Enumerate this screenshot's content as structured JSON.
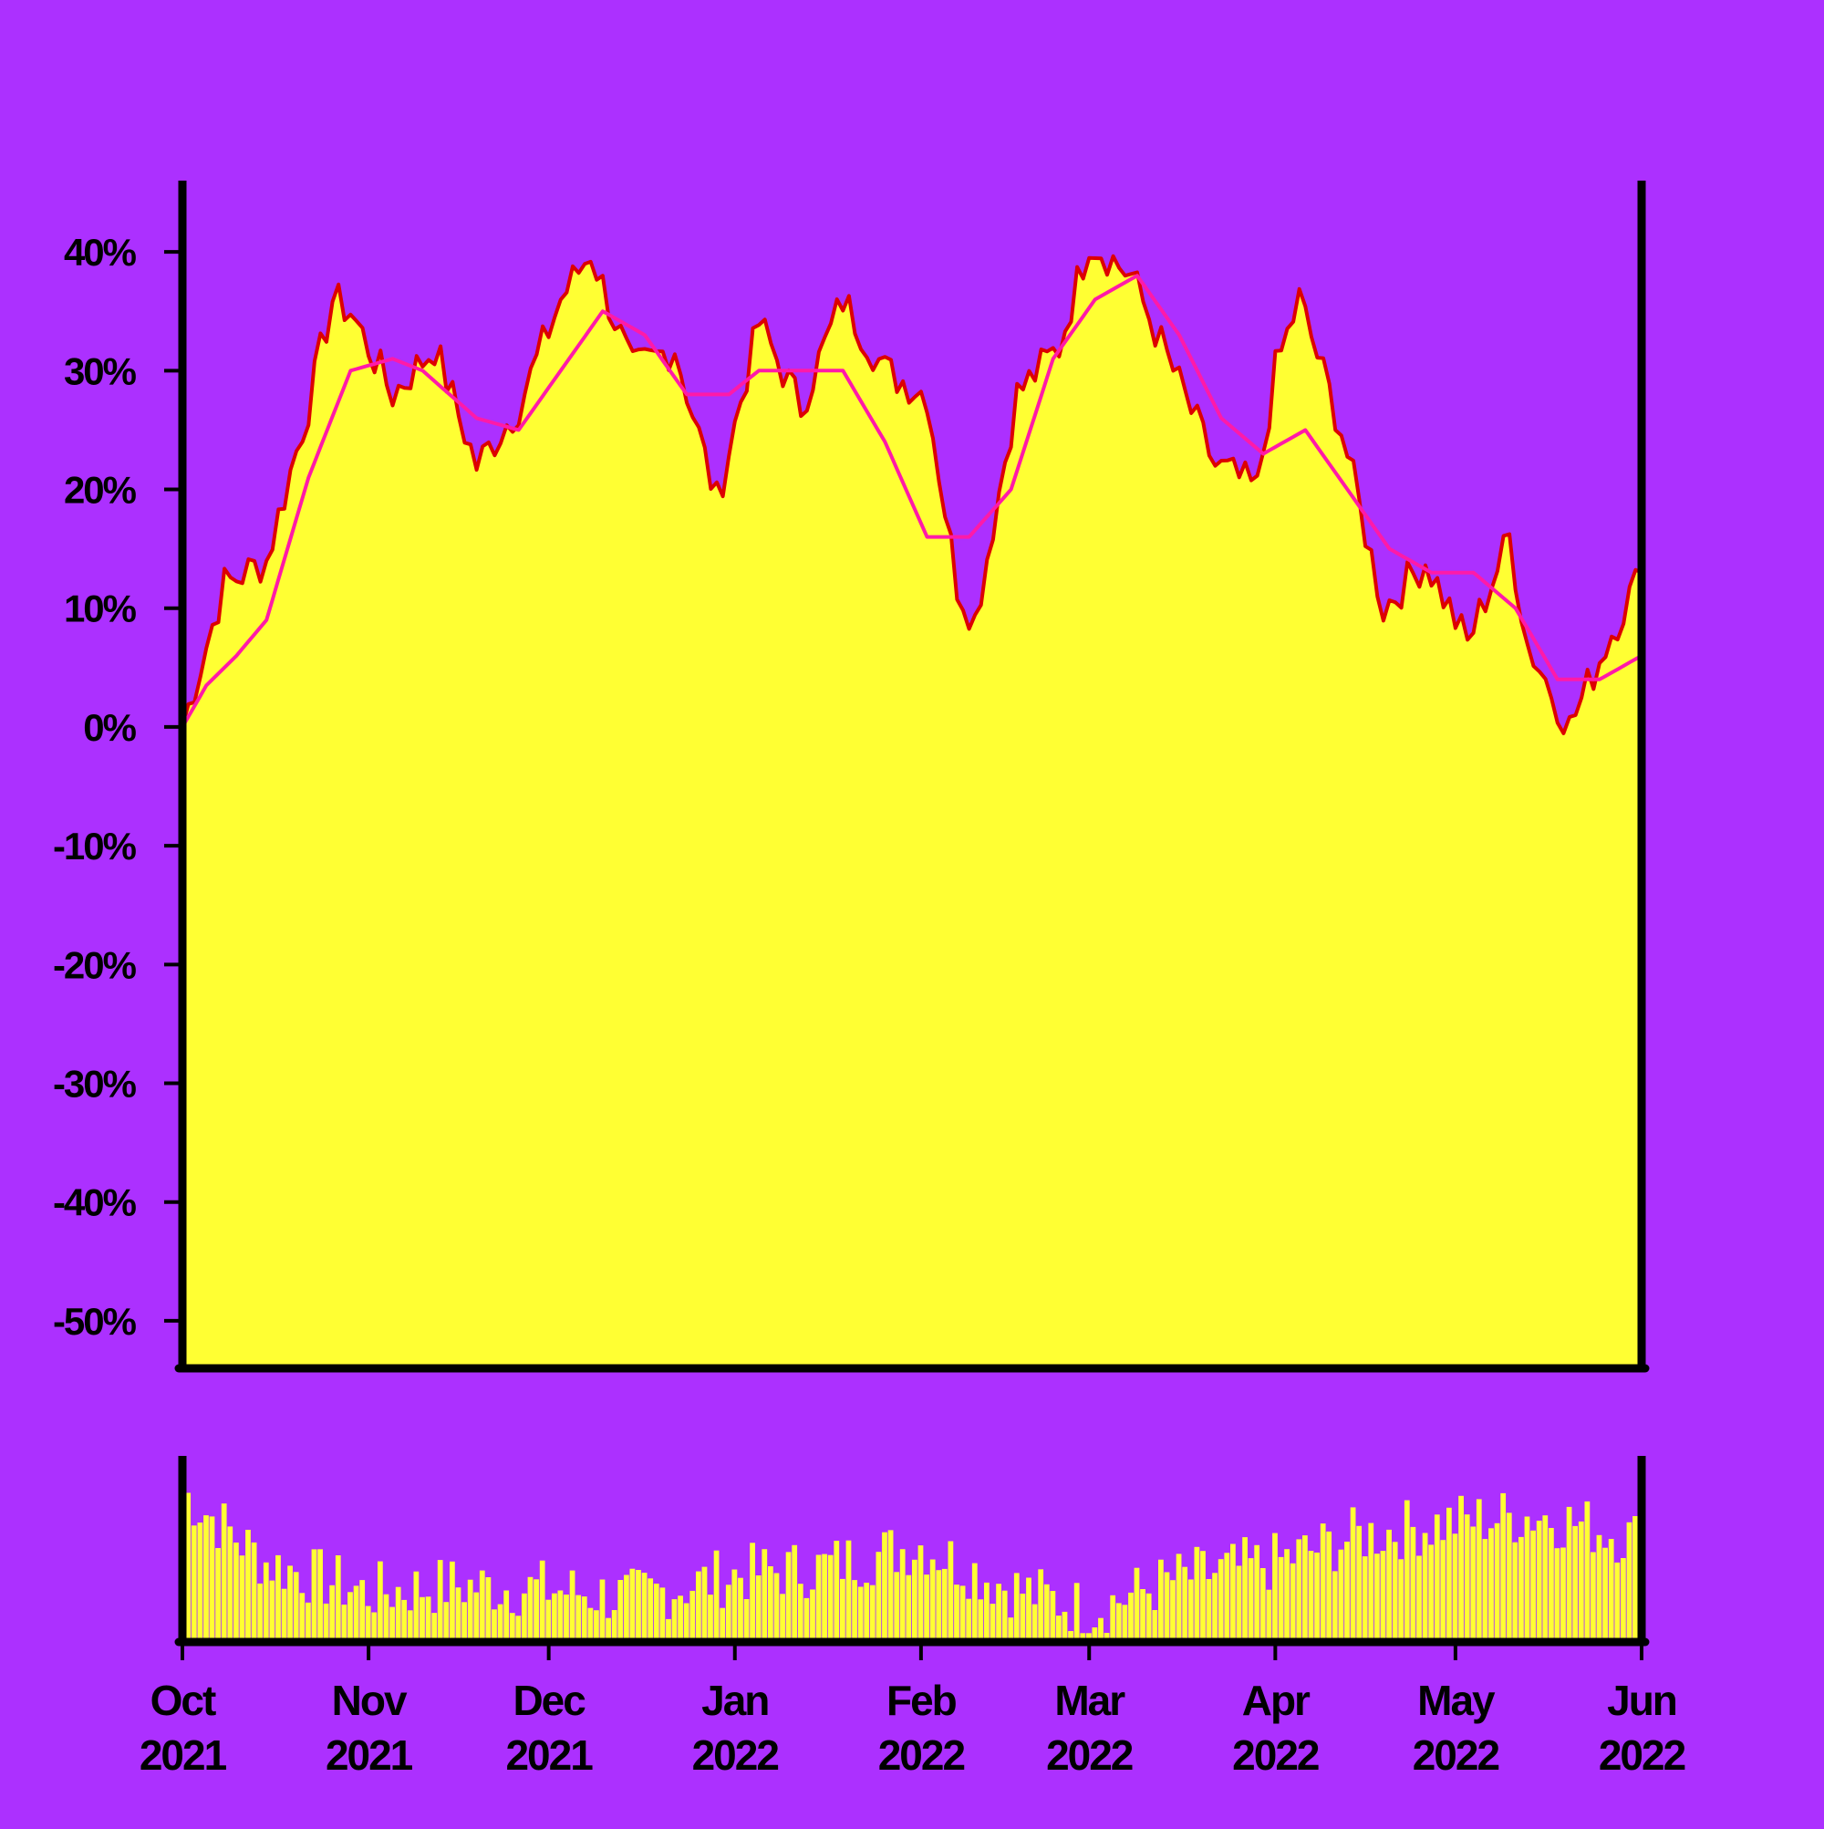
{
  "colors": {
    "background": "#ac30ff",
    "area_fill": "#ffff33",
    "price_line": "#dd0000",
    "moving_average": "#ff1aa8",
    "axis": "#000000",
    "volume_bars": "#ffff33"
  },
  "chart_data": [
    {
      "type": "area",
      "x_type": "date",
      "ylim": [
        -0.54,
        0.46
      ],
      "y_tick_values": [
        0.4,
        0.3,
        0.2,
        0.1,
        0.0,
        -0.1,
        -0.2,
        -0.3,
        -0.4,
        -0.5
      ],
      "y_tick_labels": [
        "40%",
        "30%",
        "20%",
        "10%",
        "0%",
        "-10%",
        "-20%",
        "-30%",
        "-40%",
        "-50%"
      ],
      "grid": false,
      "legend": "none",
      "series": [
        {
          "role": "price",
          "x": [
            "2021-10-01",
            "2021-10-08",
            "2021-10-15",
            "2021-10-22",
            "2021-10-26",
            "2021-10-29",
            "2021-11-05",
            "2021-11-12",
            "2021-11-19",
            "2021-11-26",
            "2021-12-03",
            "2021-12-08",
            "2021-12-15",
            "2021-12-22",
            "2021-12-29",
            "2022-01-05",
            "2022-01-12",
            "2022-01-19",
            "2022-01-26",
            "2022-02-02",
            "2022-02-07",
            "2022-02-10",
            "2022-02-17",
            "2022-02-24",
            "2022-03-01",
            "2022-03-08",
            "2022-03-15",
            "2022-03-22",
            "2022-03-29",
            "2022-04-01",
            "2022-04-05",
            "2022-04-12",
            "2022-04-19",
            "2022-04-26",
            "2022-05-03",
            "2022-05-10",
            "2022-05-13",
            "2022-05-20",
            "2022-05-27",
            "2022-06-01"
          ],
          "values": [
            0.0,
            0.12,
            0.14,
            0.27,
            0.36,
            0.35,
            0.28,
            0.32,
            0.22,
            0.27,
            0.36,
            0.4,
            0.3,
            0.32,
            0.19,
            0.34,
            0.27,
            0.36,
            0.3,
            0.28,
            0.12,
            0.09,
            0.28,
            0.32,
            0.41,
            0.38,
            0.3,
            0.22,
            0.2,
            0.3,
            0.36,
            0.25,
            0.1,
            0.14,
            0.07,
            0.16,
            0.07,
            0.0,
            0.08,
            0.13
          ]
        },
        {
          "role": "moving_average",
          "x": [
            "2021-10-01",
            "2021-10-05",
            "2021-10-10",
            "2021-10-15",
            "2021-10-22",
            "2021-10-29",
            "2021-11-05",
            "2021-11-10",
            "2021-11-19",
            "2021-11-26",
            "2021-12-03",
            "2021-12-10",
            "2021-12-17",
            "2021-12-24",
            "2021-12-31",
            "2022-01-05",
            "2022-01-12",
            "2022-01-19",
            "2022-01-26",
            "2022-02-02",
            "2022-02-09",
            "2022-02-16",
            "2022-02-23",
            "2022-03-02",
            "2022-03-09",
            "2022-03-16",
            "2022-03-23",
            "2022-03-30",
            "2022-04-06",
            "2022-04-13",
            "2022-04-20",
            "2022-04-27",
            "2022-05-04",
            "2022-05-11",
            "2022-05-18",
            "2022-05-25",
            "2022-06-01"
          ],
          "values": [
            0.0,
            0.035,
            0.06,
            0.09,
            0.21,
            0.3,
            0.31,
            0.3,
            0.26,
            0.25,
            0.3,
            0.35,
            0.33,
            0.28,
            0.28,
            0.3,
            0.3,
            0.3,
            0.24,
            0.16,
            0.16,
            0.2,
            0.31,
            0.36,
            0.38,
            0.33,
            0.26,
            0.23,
            0.25,
            0.2,
            0.15,
            0.13,
            0.13,
            0.1,
            0.04,
            0.04,
            0.06
          ]
        }
      ]
    },
    {
      "type": "bar",
      "role": "volume",
      "x_type": "date",
      "x_ticks": [
        {
          "date": "2021-10-01",
          "month": "Oct",
          "year": "2021"
        },
        {
          "date": "2021-11-01",
          "month": "Nov",
          "year": "2021"
        },
        {
          "date": "2021-12-01",
          "month": "Dec",
          "year": "2021"
        },
        {
          "date": "2022-01-01",
          "month": "Jan",
          "year": "2022"
        },
        {
          "date": "2022-02-01",
          "month": "Feb",
          "year": "2022"
        },
        {
          "date": "2022-03-01",
          "month": "Mar",
          "year": "2022"
        },
        {
          "date": "2022-04-01",
          "month": "Apr",
          "year": "2022"
        },
        {
          "date": "2022-05-01",
          "month": "May",
          "year": "2022"
        },
        {
          "date": "2022-06-01",
          "month": "Jun",
          "year": "2022"
        }
      ],
      "x": [
        "2021-10-01",
        "2021-10-15",
        "2021-11-01",
        "2021-11-15",
        "2021-12-01",
        "2021-12-15",
        "2022-01-01",
        "2022-01-15",
        "2022-02-01",
        "2022-02-15",
        "2022-03-01",
        "2022-03-15",
        "2022-04-01",
        "2022-04-15",
        "2022-05-01",
        "2022-05-15",
        "2022-06-01"
      ],
      "values": [
        0.85,
        0.45,
        0.28,
        0.32,
        0.3,
        0.25,
        0.38,
        0.42,
        0.55,
        0.32,
        0.18,
        0.35,
        0.45,
        0.6,
        0.68,
        0.72,
        0.58
      ]
    }
  ]
}
